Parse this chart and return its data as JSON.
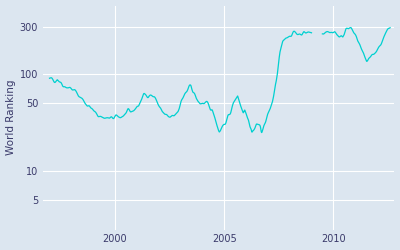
{
  "ylabel": "World Ranking",
  "line_color": "#00d0d0",
  "background_color": "#dce6f0",
  "fig_bg_color": "#dce6f0",
  "yticks": [
    5,
    10,
    50,
    100,
    300
  ],
  "ylim": [
    2.5,
    500
  ],
  "xlim_start": 1996.7,
  "xlim_end": 2012.8,
  "xticks": [
    2000,
    2005,
    2010
  ],
  "grid_color": "#ffffff",
  "line_width": 0.9
}
